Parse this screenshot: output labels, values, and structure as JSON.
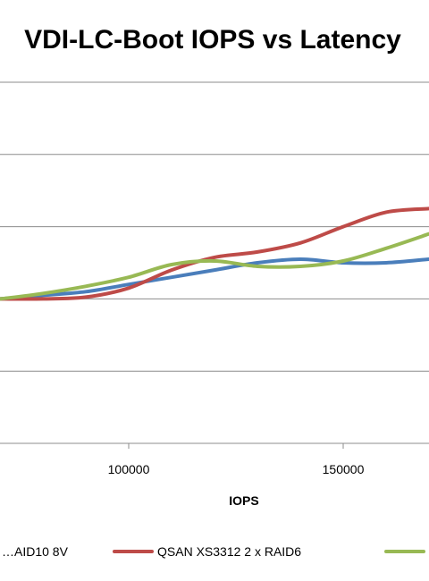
{
  "chart_data": {
    "type": "line",
    "title": "VDI-LC-Boot IOPS vs Latency",
    "xlabel": "IOPS",
    "ylabel": "",
    "xlim": [
      70000,
      170000
    ],
    "ylim": [
      0,
      10
    ],
    "x_ticks": [
      100000,
      150000
    ],
    "y_gridlines": [
      2,
      4,
      6,
      8,
      10
    ],
    "grid": true,
    "legend_position": "bottom",
    "series": [
      {
        "name": "…AID10 8V",
        "color": "#4a7ebb",
        "x": [
          70000,
          80000,
          90000,
          100000,
          110000,
          120000,
          130000,
          140000,
          150000,
          160000,
          170000
        ],
        "y": [
          4.0,
          4.1,
          4.2,
          4.4,
          4.6,
          4.8,
          5.0,
          5.1,
          5.0,
          5.0,
          5.1
        ]
      },
      {
        "name": "QSAN XS3312 2 x RAID6",
        "color": "#be4b48",
        "x": [
          70000,
          80000,
          90000,
          100000,
          110000,
          120000,
          130000,
          140000,
          150000,
          160000,
          170000
        ],
        "y": [
          4.0,
          4.0,
          4.05,
          4.3,
          4.8,
          5.15,
          5.3,
          5.55,
          6.0,
          6.4,
          6.5
        ]
      },
      {
        "name": "",
        "color": "#98b954",
        "x": [
          70000,
          80000,
          90000,
          100000,
          110000,
          120000,
          130000,
          140000,
          150000,
          160000,
          170000
        ],
        "y": [
          4.0,
          4.15,
          4.35,
          4.6,
          4.95,
          5.05,
          4.9,
          4.9,
          5.05,
          5.4,
          5.8
        ]
      }
    ]
  }
}
